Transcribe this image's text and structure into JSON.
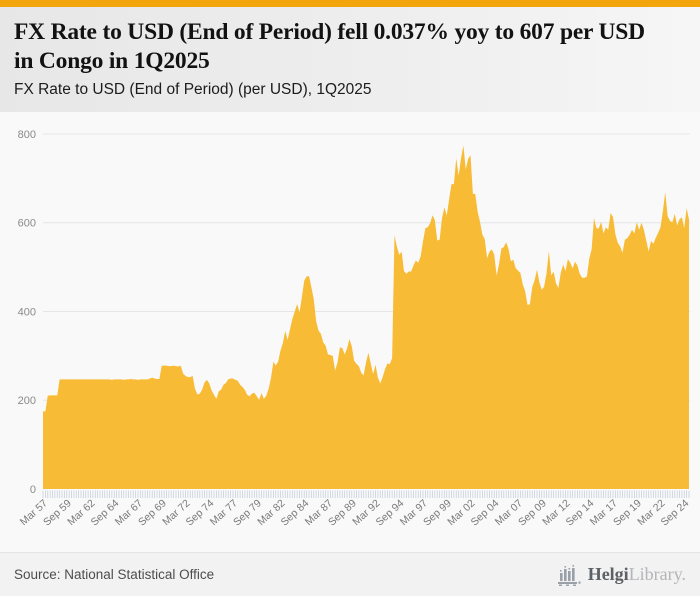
{
  "accent_color": "#f2a50c",
  "header": {
    "title": "FX Rate to USD (End of Period) fell 0.037% yoy to 607 per USD in Congo in 1Q2025",
    "subtitle": "FX Rate to USD (End of Period) (per USD), 1Q2025"
  },
  "chart_data": {
    "type": "area",
    "title": "FX Rate to USD (End of Period) (per USD), 1Q2025",
    "series_name": "FX Rate to USD (End of Period)",
    "unit": "per USD",
    "frequency": "quarterly",
    "x_start": "Mar 1957",
    "x_end": "Mar 2025",
    "last_value": 607,
    "yoy_change_pct": -0.037,
    "country": "Congo",
    "ylim": [
      0,
      800
    ],
    "y_ticks": [
      0,
      200,
      400,
      600,
      800
    ],
    "grid": true,
    "legend": false,
    "fill_color": "#f8bb35",
    "grid_color": "#e6e6e6",
    "tickcomb_color": "#c7d0df",
    "x_tick_every_n_points": 10,
    "x_tick_labels": [
      "Mar 57",
      "Sep 59",
      "Mar 62",
      "Sep 64",
      "Mar 67",
      "Sep 69",
      "Mar 72",
      "Sep 74",
      "Mar 77",
      "Sep 79",
      "Mar 82",
      "Sep 84",
      "Mar 87",
      "Sep 89",
      "Mar 92",
      "Sep 94",
      "Mar 97",
      "Sep 99",
      "Mar 02",
      "Sep 04",
      "Mar 07",
      "Sep 09",
      "Mar 12",
      "Sep 14",
      "Mar 17",
      "Sep 19",
      "Mar 22",
      "Sep 24"
    ],
    "values": [
      175,
      175,
      210,
      211,
      211,
      211,
      211,
      247,
      247,
      247,
      247,
      247,
      247,
      247,
      247,
      247,
      247,
      247,
      247,
      247,
      247,
      247,
      247,
      247,
      247,
      247,
      247,
      247,
      247,
      246,
      247,
      247,
      247,
      247,
      246,
      247,
      247,
      248,
      247,
      247,
      246,
      247,
      247,
      247,
      247,
      249,
      251,
      249,
      248,
      248,
      278,
      278,
      278,
      277,
      277,
      278,
      277,
      276,
      278,
      260,
      255,
      252,
      252,
      255,
      226,
      213,
      215,
      224,
      240,
      246,
      238,
      222,
      212,
      203,
      220,
      224,
      235,
      239,
      247,
      249,
      249,
      246,
      244,
      235,
      230,
      223,
      212,
      209,
      215,
      217,
      209,
      201,
      216,
      203,
      210,
      226,
      250,
      287,
      278,
      287,
      312,
      329,
      356,
      336,
      360,
      383,
      400,
      417,
      398,
      432,
      470,
      479,
      480,
      455,
      428,
      378,
      357,
      350,
      330,
      323,
      303,
      302,
      300,
      267,
      285,
      319,
      318,
      303,
      316,
      338,
      322,
      289,
      282,
      277,
      262,
      256,
      285,
      307,
      283,
      259,
      280,
      251,
      238,
      252,
      270,
      283,
      281,
      295,
      572,
      546,
      528,
      535,
      491,
      485,
      490,
      490,
      504,
      515,
      510,
      524,
      558,
      588,
      590,
      599,
      617,
      606,
      560,
      562,
      610,
      635,
      616,
      653,
      687,
      687,
      745,
      706,
      745,
      774,
      720,
      744,
      752,
      665,
      665,
      625,
      602,
      573,
      563,
      520,
      535,
      540,
      528,
      481,
      506,
      542,
      545,
      556,
      541,
      513,
      517,
      498,
      492,
      487,
      461,
      446,
      415,
      416,
      455,
      471,
      494,
      466,
      449,
      456,
      486,
      536,
      481,
      490,
      463,
      453,
      487,
      506,
      491,
      518,
      510,
      497,
      512,
      504,
      485,
      476,
      476,
      479,
      519,
      540,
      611,
      588,
      587,
      602,
      576,
      590,
      584,
      622,
      613,
      574,
      555,
      547,
      532,
      562,
      565,
      573,
      584,
      576,
      601,
      584,
      600,
      584,
      560,
      535,
      559,
      553,
      566,
      577,
      590,
      626,
      669,
      615,
      604,
      601,
      620,
      594,
      608,
      612,
      588,
      633,
      607
    ]
  },
  "footer": {
    "source": "Source: National Statistical Office",
    "brand": {
      "primary": "Helgi",
      "secondary": "Library.",
      "icon": "bar-chart-logo-icon"
    }
  }
}
